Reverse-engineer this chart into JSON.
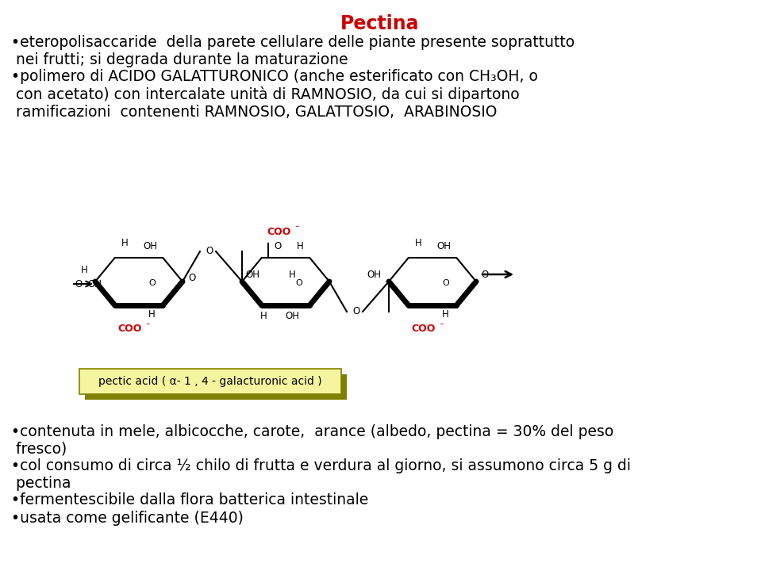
{
  "title": "Pectina",
  "title_color": "#cc0000",
  "title_fontsize": 17,
  "bg_color": "#ffffff",
  "bullet_color": "#000000",
  "bullet_fontsize": 13.5,
  "bullets_top": [
    "•eteropolisaccaride  della parete cellulare delle piante presente soprattutto\n nei frutti; si degrada durante la maturazione",
    "•polimero di ACIDO GALATTURONICO (anche esterificato con CH₃OH, o\n con acetato) con intercalate unità di RAMNOSIO, da cui si dipartono\n ramificazioni  contenenti RAMNOSIO, GALATTOSIO,  ARABINOSIO"
  ],
  "bullets_bottom": [
    "•contenuta in mele, albicocche, carote,  arance (albedo, pectina = 30% del peso\n fresco)",
    "•col consumo di circa ½ chilo di frutta e verdura al giorno, si assumono circa 5 g di\n pectina",
    "•fermentescibile dalla flora batterica intestinale",
    "•usata come gelificante (E440)"
  ],
  "label_box_text": "pectic acid ( α- 1 , 4 - galacturonic acid )",
  "label_box_fill": "#f5f5a0",
  "label_box_shadow": "#808000",
  "red_color": "#cc0000",
  "black_color": "#000000"
}
